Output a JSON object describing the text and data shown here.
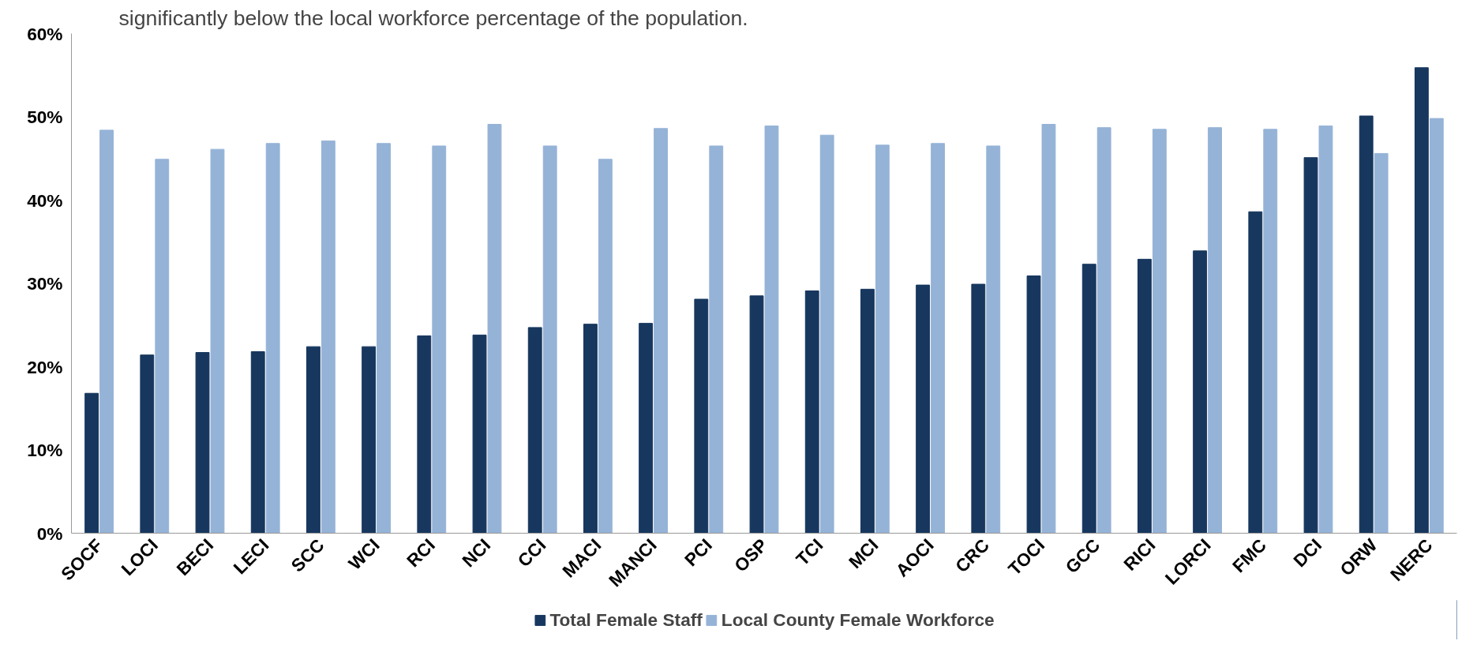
{
  "chart_data": {
    "type": "bar",
    "title": "significantly below the local workforce percentage of the population.",
    "categories": [
      "SOCF",
      "LOCI",
      "BECI",
      "LECI",
      "SCC",
      "WCI",
      "RCI",
      "NCI",
      "CCI",
      "MACI",
      "MANCI",
      "PCI",
      "OSP",
      "TCI",
      "MCI",
      "AOCI",
      "CRC",
      "TOCI",
      "GCC",
      "RICI",
      "LORCI",
      "FMC",
      "DCI",
      "ORW",
      "NERC"
    ],
    "series": [
      {
        "name": "Total Female Staff",
        "color": "#17375e",
        "values": [
          16.8,
          21.4,
          21.7,
          21.8,
          22.4,
          22.4,
          23.7,
          23.8,
          24.7,
          25.1,
          25.2,
          28.1,
          28.5,
          29.1,
          29.3,
          29.8,
          29.9,
          30.9,
          32.3,
          32.9,
          33.9,
          38.6,
          45.1,
          50.1,
          55.9
        ]
      },
      {
        "name": "Local County Female Workforce",
        "color": "#95b3d7",
        "values": [
          48.4,
          44.9,
          46.1,
          46.8,
          47.1,
          46.8,
          46.5,
          49.1,
          46.5,
          44.9,
          48.6,
          46.5,
          48.9,
          47.8,
          46.6,
          46.8,
          46.5,
          49.1,
          48.7,
          48.5,
          48.7,
          48.5,
          48.9,
          45.6,
          49.8
        ]
      }
    ],
    "ylim": [
      0,
      60
    ],
    "yticks": [
      {
        "value": 0,
        "label": "0%"
      },
      {
        "value": 10,
        "label": "10%"
      },
      {
        "value": 20,
        "label": "20%"
      },
      {
        "value": 30,
        "label": "30%"
      },
      {
        "value": 40,
        "label": "40%"
      },
      {
        "value": 50,
        "label": "50%"
      },
      {
        "value": 60,
        "label": "60%"
      }
    ],
    "grid": false,
    "legend": "bottom"
  }
}
